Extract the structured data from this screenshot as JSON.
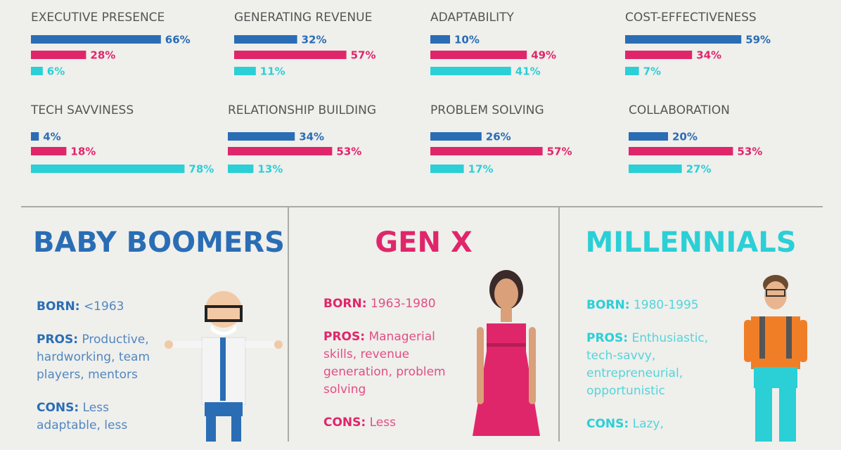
{
  "chart_data": [
    {
      "type": "bar",
      "title": "EXECUTIVE PRESENCE",
      "values": [
        66,
        28,
        6
      ],
      "value_labels": [
        "66%",
        "28%",
        "6%"
      ],
      "colors": [
        "#2a6db5",
        "#e0266a",
        "#2bcfd6"
      ]
    },
    {
      "type": "bar",
      "title": "GENERATING REVENUE",
      "values": [
        32,
        57,
        11
      ],
      "value_labels": [
        "32%",
        "57%",
        "11%"
      ],
      "colors": [
        "#2a6db5",
        "#e0266a",
        "#2bcfd6"
      ]
    },
    {
      "type": "bar",
      "title": "ADAPTABILITY",
      "values": [
        10,
        49,
        41
      ],
      "value_labels": [
        "10%",
        "49%",
        "41%"
      ],
      "colors": [
        "#2a6db5",
        "#e0266a",
        "#2bcfd6"
      ]
    },
    {
      "type": "bar",
      "title": "COST-EFFECTIVENESS",
      "values": [
        59,
        34,
        7
      ],
      "value_labels": [
        "59%",
        "34%",
        "7%"
      ],
      "colors": [
        "#2a6db5",
        "#e0266a",
        "#2bcfd6"
      ]
    },
    {
      "type": "bar",
      "title": "TECH SAVVINESS",
      "values": [
        4,
        18,
        78
      ],
      "value_labels": [
        "4%",
        "18%",
        "78%"
      ],
      "colors": [
        "#2a6db5",
        "#e0266a",
        "#2bcfd6"
      ]
    },
    {
      "type": "bar",
      "title": "RELATIONSHIP BUILDING",
      "values": [
        34,
        53,
        13
      ],
      "value_labels": [
        "34%",
        "53%",
        "13%"
      ],
      "colors": [
        "#2a6db5",
        "#e0266a",
        "#2bcfd6"
      ]
    },
    {
      "type": "bar",
      "title": "PROBLEM SOLVING",
      "values": [
        26,
        57,
        17
      ],
      "value_labels": [
        "26%",
        "57%",
        "17%"
      ],
      "colors": [
        "#2a6db5",
        "#e0266a",
        "#2bcfd6"
      ]
    },
    {
      "type": "bar",
      "title": "COLLABORATION",
      "values": [
        20,
        53,
        27
      ],
      "value_labels": [
        "20%",
        "53%",
        "27%"
      ],
      "colors": [
        "#2a6db5",
        "#e0266a",
        "#2bcfd6"
      ]
    }
  ],
  "generations": [
    {
      "title": "BABY BOOMERS",
      "color": "#2a6db5",
      "born_label": "BORN:",
      "born": "<1963",
      "pros_label": "PROS:",
      "pros": "Productive, hardworking, team players, mentors",
      "cons_label": "CONS:",
      "cons": "Less adaptable, less"
    },
    {
      "title": "GEN X",
      "color": "#e0266a",
      "born_label": "BORN:",
      "born": "1963-1980",
      "pros_label": "PROS:",
      "pros": "Managerial skills, revenue generation, problem solving",
      "cons_label": "CONS:",
      "cons": "Less"
    },
    {
      "title": "MILLENNIALS",
      "color": "#2bcfd6",
      "born_label": "BORN:",
      "born": "1980-1995",
      "pros_label": "PROS:",
      "pros": "Enthusiastic, tech-savvy, entrepreneurial, opportunistic",
      "cons_label": "CONS:",
      "cons": "Lazy,"
    }
  ]
}
